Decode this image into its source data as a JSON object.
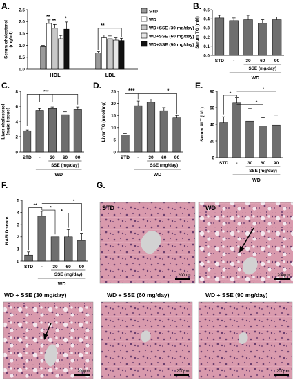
{
  "panel_labels": {
    "a": "A.",
    "b": "B.",
    "c": "C.",
    "d": "D.",
    "e": "E.",
    "f": "F.",
    "g": "G."
  },
  "chart_data": [
    {
      "panel": "A",
      "type": "bar",
      "categories": [
        "HDL",
        "LDL"
      ],
      "ylabel": "Serum cholesterol (mg/ml)",
      "ylim": [
        0,
        2.5
      ],
      "yticks": [
        0.0,
        0.5,
        1.0,
        1.5,
        2.0,
        2.5
      ],
      "ytick_labels": [
        "0.0",
        "0.5",
        "1.0",
        "1.5",
        "2.0",
        "2.5"
      ],
      "series": [
        {
          "name": "STD",
          "values": [
            0.95,
            0.68
          ],
          "errors": [
            0.05,
            0.06
          ],
          "color": "#9a9a9a"
        },
        {
          "name": "WD",
          "values": [
            1.92,
            1.32
          ],
          "errors": [
            0.15,
            0.12
          ],
          "color": "#ffffff"
        },
        {
          "name": "WD+SSE (30 mg/day)",
          "values": [
            1.72,
            1.28
          ],
          "errors": [
            0.16,
            0.12
          ],
          "color": "#c8c8c8"
        },
        {
          "name": "WD+SSE (60 mg/day)",
          "values": [
            1.28,
            1.22
          ],
          "errors": [
            0.14,
            0.1
          ],
          "color": "#e6e6e6"
        },
        {
          "name": "WD+SSE (90 mg/day)",
          "values": [
            1.68,
            1.2
          ],
          "errors": [
            0.3,
            0.1
          ],
          "color": "#111111"
        }
      ],
      "annotations": [
        "**",
        "**",
        "*",
        "**"
      ],
      "legend_placement": "right"
    },
    {
      "panel": "B",
      "type": "bar",
      "categories": [
        "STD",
        "-",
        "30",
        "60",
        "90"
      ],
      "ylabel": "Serum TG (mM)",
      "ylim": [
        0,
        0.5
      ],
      "yticks": [
        0.0,
        0.1,
        0.2,
        0.3,
        0.4,
        0.5
      ],
      "ytick_labels": [
        "0.0",
        "0.1",
        "0.2",
        "0.3",
        "0.4",
        "0.5"
      ],
      "values": [
        0.41,
        0.38,
        0.39,
        0.35,
        0.39
      ],
      "errors": [
        0.03,
        0.03,
        0.05,
        0.04,
        0.03
      ],
      "xlabel": "SSE (mg/day)",
      "group_label": "WD"
    },
    {
      "panel": "C",
      "type": "bar",
      "categories": [
        "STD",
        "-",
        "30",
        "60",
        "90"
      ],
      "ylabel": "Liver cholesterol (mg/g tissue)",
      "ylim": [
        0,
        8
      ],
      "yticks": [
        0,
        2,
        4,
        6,
        8
      ],
      "ytick_labels": [
        "0",
        "2",
        "4",
        "6",
        "8"
      ],
      "values": [
        2.8,
        5.5,
        5.7,
        4.9,
        5.6
      ],
      "errors": [
        0.1,
        0.2,
        0.2,
        0.4,
        0.3
      ],
      "annotations": [
        "***"
      ],
      "xlabel": "SSE (mg/day)",
      "group_label": "WD"
    },
    {
      "panel": "D",
      "type": "bar",
      "categories": [
        "STD",
        "-",
        "30",
        "60",
        "90"
      ],
      "ylabel": "Liver TG (nmol/mg)",
      "ylim": [
        0,
        25
      ],
      "yticks": [
        0,
        5,
        10,
        15,
        20,
        25
      ],
      "ytick_labels": [
        "0",
        "5",
        "10",
        "15",
        "20",
        "25"
      ],
      "values": [
        7,
        19,
        20.5,
        17,
        14
      ],
      "errors": [
        0.5,
        2.0,
        1.2,
        1.2,
        1.0
      ],
      "annotations": [
        "***",
        "*"
      ],
      "xlabel": "SSE (mg/day)",
      "group_label": "WD"
    },
    {
      "panel": "E",
      "type": "bar",
      "categories": [
        "STD",
        "-",
        "30",
        "60",
        "90"
      ],
      "ylabel": "Serum ALT (U/L)",
      "ylim": [
        0,
        80
      ],
      "yticks": [
        0,
        20,
        40,
        60,
        80
      ],
      "ytick_labels": [
        "0",
        "20",
        "40",
        "60",
        "80"
      ],
      "values": [
        42,
        66,
        44,
        37,
        39
      ],
      "errors": [
        7,
        6,
        15,
        11,
        12
      ],
      "annotations": [
        "*",
        "*",
        "*",
        "*"
      ],
      "xlabel": "SSE (mg/day)",
      "group_label": "WD"
    },
    {
      "panel": "F",
      "type": "bar",
      "categories": [
        "STD",
        "-",
        "30",
        "60",
        "90"
      ],
      "ylabel": "NAFLD score",
      "ylim": [
        0,
        5
      ],
      "yticks": [
        0,
        1,
        2,
        3,
        4,
        5
      ],
      "ytick_labels": [
        "0",
        "1",
        "2",
        "3",
        "4",
        "5"
      ],
      "values": [
        0.5,
        3.7,
        2.0,
        2.0,
        1.7
      ],
      "errors": [
        0.25,
        0.4,
        0.0,
        0.6,
        0.6
      ],
      "annotations": [
        "**",
        "*",
        "*",
        "*"
      ],
      "xlabel": "SSE (mg/day)",
      "group_label": "WD"
    }
  ],
  "micrographs": [
    {
      "title": "STD",
      "scale": "200μm",
      "arrow": false
    },
    {
      "title": "WD",
      "scale": "200μm",
      "arrow": true
    },
    {
      "title": "WD + SSE (30 mg/day)",
      "scale": "200μm",
      "arrow": true
    },
    {
      "title": "WD + SSE (60 mg/day)",
      "scale": "200μm",
      "arrow": false
    },
    {
      "title": "WD + SSE (90 mg/day)",
      "scale": "200μm",
      "arrow": false
    }
  ],
  "colors": {
    "bar": "#6e6e6e",
    "tissue": "#d89aac",
    "nuclei": "#6b3e6e",
    "vessel": "#cfcfcf"
  }
}
